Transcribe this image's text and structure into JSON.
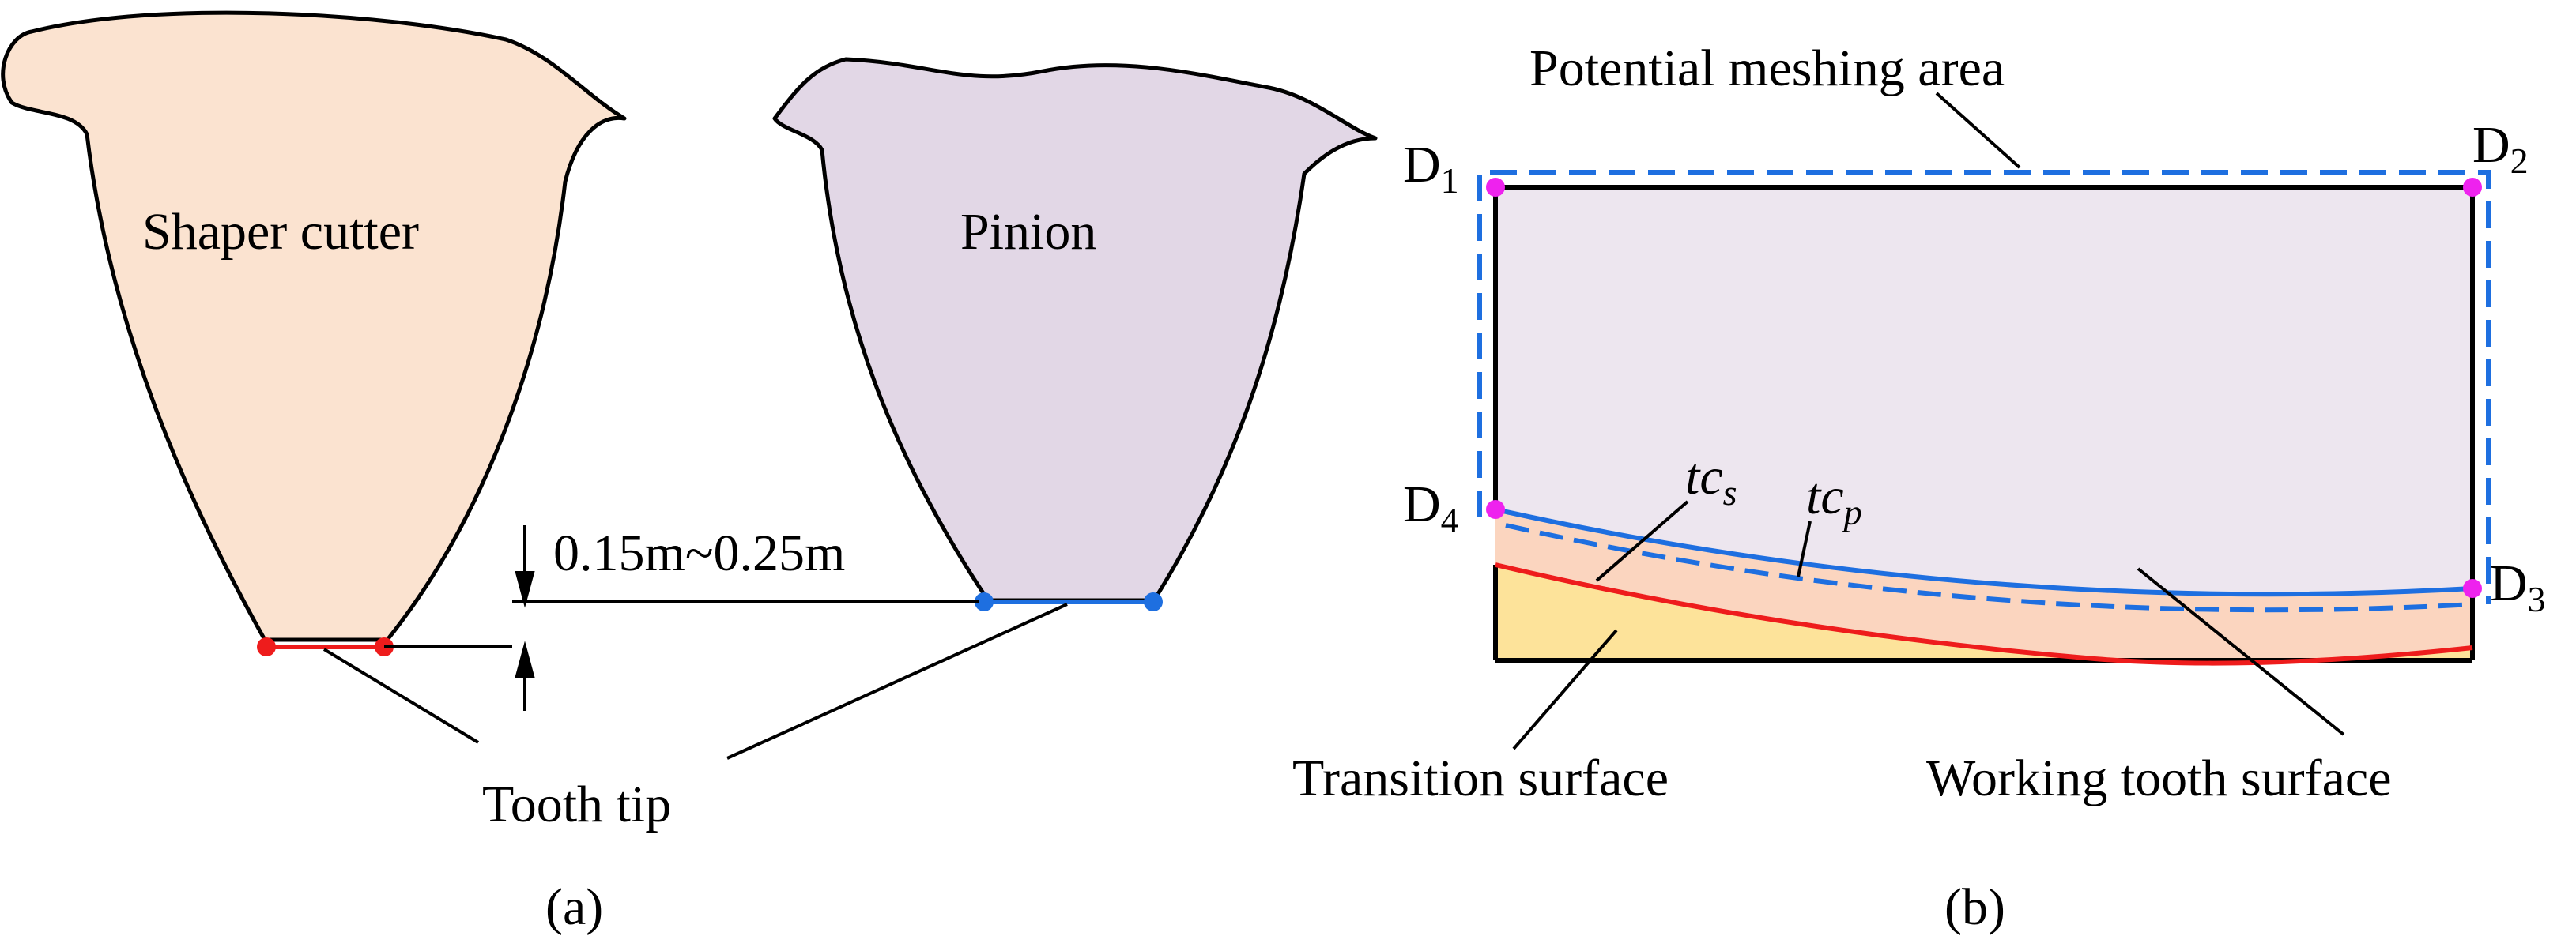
{
  "panel_a": {
    "caption": "(a)",
    "cutter_label": "Shaper cutter",
    "pinion_label": "Pinion",
    "dimension_label": "0.15m~0.25m",
    "tooth_tip_label": "Tooth tip"
  },
  "panel_b": {
    "caption": "(b)",
    "potential_area_label": "Potential meshing area",
    "d1": {
      "base": "D",
      "sub": "1"
    },
    "d2": {
      "base": "D",
      "sub": "2"
    },
    "d3": {
      "base": "D",
      "sub": "3"
    },
    "d4": {
      "base": "D",
      "sub": "4"
    },
    "tcs": {
      "base": "tc",
      "sub": "s"
    },
    "tcp": {
      "base": "tc",
      "sub": "p"
    },
    "transition_label": "Transition surface",
    "working_label": "Working tooth surface"
  },
  "colors": {
    "cutter_fill": "#fbe3d0",
    "pinion_fill": "#e2d7e6",
    "region_fill": "#ede6ef",
    "working_band_fill": "#fbd5bf",
    "transition_fill": "#fde39a",
    "red": "#ee1c1c",
    "blue": "#1e6fe0",
    "magenta": "#ee22ee",
    "black": "#000000"
  }
}
